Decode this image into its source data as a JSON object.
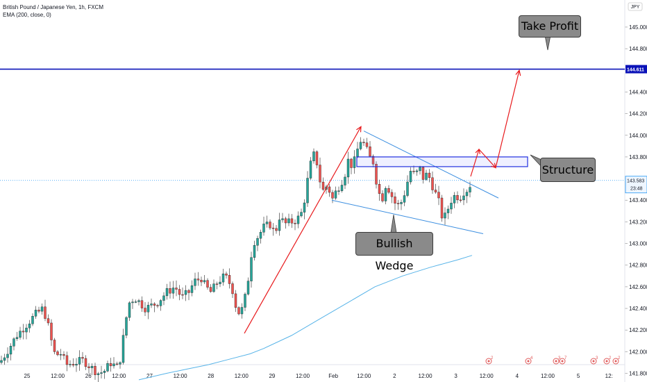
{
  "header": {
    "symbol_line": "British Pound / Japanese Yen, 1h, FXCM",
    "indicator_line": "EMA (200, close, 0)"
  },
  "annotations": {
    "take_profit": "Take Profit",
    "structure": "Structure",
    "bullish_wedge": "Bullish Wedge"
  },
  "price_scale": {
    "currency": "JPY",
    "current_price": "143.583",
    "countdown": "23:48",
    "target_price": "144.611"
  },
  "events": [
    {
      "label": "2"
    },
    {
      "label": "4"
    },
    {
      "label": "3"
    },
    {
      "label": "7"
    },
    {
      "label": "3"
    },
    {
      "label": "2"
    },
    {
      "label": "2"
    }
  ],
  "colors": {
    "bull": "#26a69a",
    "bear": "#ef5350",
    "ema": "#56b3e8",
    "target_line": "#0a12b8",
    "arrows": "#e8191c",
    "wedge": "#3b8ee0",
    "structure_box": "#1f2ee0",
    "current_price": "#2196f3"
  },
  "chart_data": {
    "type": "candlestick",
    "title": "British Pound / Japanese Yen, 1h, FXCM",
    "ylim": [
      141.72,
      145.25
    ],
    "y_ticks": [
      "145.000",
      "144.800",
      "144.611",
      "144.400",
      "144.200",
      "144.000",
      "143.800",
      "143.583",
      "143.400",
      "143.200",
      "143.000",
      "142.800",
      "142.600",
      "142.400",
      "142.200",
      "142.000",
      "141.800"
    ],
    "x_ticks": [
      "25",
      "12:00",
      "26",
      "12:00",
      "27",
      "12:00",
      "28",
      "12:00",
      "29",
      "12:00",
      "Feb",
      "12:00",
      "2",
      "12:00",
      "3",
      "12:00",
      "4",
      "12:00",
      "5",
      "12:"
    ],
    "close_path": [
      [
        0,
        141.9
      ],
      [
        10,
        142.0
      ],
      [
        24,
        142.15
      ],
      [
        38,
        142.25
      ],
      [
        52,
        142.35
      ],
      [
        62,
        142.4
      ],
      [
        68,
        142.28
      ],
      [
        74,
        142.1
      ],
      [
        80,
        141.95
      ],
      [
        86,
        142.0
      ],
      [
        96,
        141.88
      ],
      [
        108,
        141.9
      ],
      [
        120,
        141.92
      ],
      [
        132,
        141.85
      ],
      [
        142,
        141.8
      ],
      [
        150,
        141.82
      ],
      [
        160,
        141.9
      ],
      [
        168,
        141.85
      ],
      [
        174,
        141.95
      ],
      [
        180,
        142.25
      ],
      [
        186,
        142.45
      ],
      [
        194,
        142.5
      ],
      [
        210,
        142.4
      ],
      [
        226,
        142.45
      ],
      [
        240,
        142.55
      ],
      [
        252,
        142.6
      ],
      [
        262,
        142.5
      ],
      [
        272,
        142.55
      ],
      [
        280,
        142.65
      ],
      [
        290,
        142.68
      ],
      [
        296,
        142.6
      ],
      [
        304,
        142.55
      ],
      [
        314,
        142.65
      ],
      [
        324,
        142.7
      ],
      [
        334,
        142.6
      ],
      [
        342,
        142.35
      ],
      [
        350,
        142.4
      ],
      [
        356,
        142.6
      ],
      [
        364,
        143.0
      ],
      [
        370,
        143.05
      ],
      [
        380,
        143.15
      ],
      [
        390,
        143.18
      ],
      [
        396,
        143.08
      ],
      [
        402,
        143.25
      ],
      [
        410,
        143.18
      ],
      [
        420,
        143.2
      ],
      [
        428,
        143.22
      ],
      [
        436,
        143.3
      ],
      [
        442,
        143.55
      ],
      [
        448,
        143.75
      ],
      [
        454,
        143.85
      ],
      [
        460,
        143.6
      ],
      [
        466,
        143.48
      ],
      [
        472,
        143.55
      ],
      [
        478,
        143.4
      ],
      [
        484,
        143.48
      ],
      [
        490,
        143.55
      ],
      [
        496,
        143.62
      ],
      [
        502,
        143.78
      ],
      [
        508,
        143.7
      ],
      [
        514,
        143.85
      ],
      [
        520,
        143.96
      ],
      [
        526,
        143.9
      ],
      [
        532,
        143.8
      ],
      [
        538,
        143.75
      ],
      [
        544,
        143.5
      ],
      [
        550,
        143.4
      ],
      [
        556,
        143.55
      ],
      [
        562,
        143.48
      ],
      [
        568,
        143.38
      ],
      [
        574,
        143.35
      ],
      [
        580,
        143.4
      ],
      [
        586,
        143.55
      ],
      [
        592,
        143.68
      ],
      [
        598,
        143.62
      ],
      [
        604,
        143.7
      ],
      [
        610,
        143.6
      ],
      [
        616,
        143.65
      ],
      [
        622,
        143.55
      ],
      [
        628,
        143.45
      ],
      [
        634,
        143.35
      ],
      [
        638,
        143.2
      ],
      [
        644,
        143.3
      ],
      [
        650,
        143.4
      ],
      [
        656,
        143.45
      ],
      [
        662,
        143.42
      ],
      [
        668,
        143.48
      ],
      [
        674,
        143.5
      ],
      [
        680,
        143.58
      ]
    ],
    "ema_path": [
      [
        200,
        141.74
      ],
      [
        240,
        141.8
      ],
      [
        270,
        141.84
      ],
      [
        300,
        141.88
      ],
      [
        330,
        141.93
      ],
      [
        360,
        141.98
      ],
      [
        380,
        142.03
      ],
      [
        420,
        142.15
      ],
      [
        460,
        142.3
      ],
      [
        500,
        142.45
      ],
      [
        540,
        142.6
      ],
      [
        580,
        142.7
      ],
      [
        620,
        142.78
      ],
      [
        660,
        142.85
      ],
      [
        680,
        142.89
      ]
    ],
    "current_price": 143.583,
    "target_price": 144.611,
    "bullish_wedge": {
      "upper": [
        [
          524,
          144.04
        ],
        [
          718,
          143.42
        ]
      ],
      "lower": [
        [
          478,
          143.4
        ],
        [
          696,
          143.09
        ]
      ]
    },
    "structure_zone": {
      "x": [
        514,
        760
      ],
      "y": [
        143.71,
        143.8
      ]
    },
    "projection_arrows": [
      [
        [
          352,
          142.17
        ],
        [
          520,
          144.08
        ]
      ],
      [
        [
          678,
          143.62
        ],
        [
          690,
          143.87
        ],
        [
          714,
          143.7
        ],
        [
          748,
          144.6
        ]
      ]
    ]
  }
}
